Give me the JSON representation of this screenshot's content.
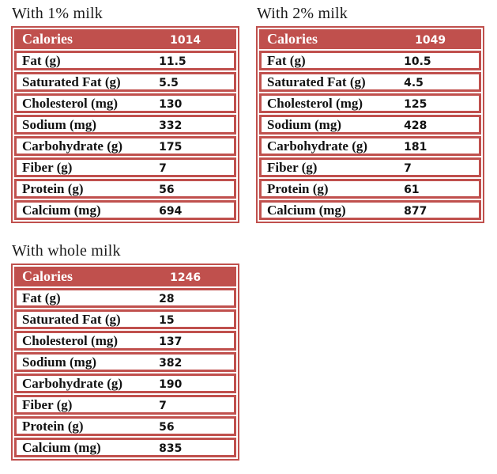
{
  "colors": {
    "accent": "#c0504d",
    "row_background": "#ffffff",
    "header_text": "#ffffff",
    "body_text": "#121212"
  },
  "tables": [
    {
      "title": "With 1% milk",
      "header": {
        "label": "Calories",
        "value": "1014"
      },
      "rows": [
        {
          "label": "Fat (g)",
          "value": "11.5"
        },
        {
          "label": "Saturated Fat (g)",
          "value": "5.5"
        },
        {
          "label": "Cholesterol (mg)",
          "value": "130"
        },
        {
          "label": "Sodium (mg)",
          "value": "332"
        },
        {
          "label": "Carbohydrate (g)",
          "value": "175"
        },
        {
          "label": "Fiber (g)",
          "value": "7"
        },
        {
          "label": "Protein (g)",
          "value": "56"
        },
        {
          "label": "Calcium (mg)",
          "value": "694"
        }
      ]
    },
    {
      "title": "With 2% milk",
      "header": {
        "label": "Calories",
        "value": "1049"
      },
      "rows": [
        {
          "label": "Fat (g)",
          "value": "10.5"
        },
        {
          "label": "Saturated Fat (g)",
          "value": "4.5"
        },
        {
          "label": "Cholesterol (mg)",
          "value": "125"
        },
        {
          "label": "Sodium (mg)",
          "value": "428"
        },
        {
          "label": "Carbohydrate (g)",
          "value": "181"
        },
        {
          "label": "Fiber (g)",
          "value": "7"
        },
        {
          "label": "Protein (g)",
          "value": "61"
        },
        {
          "label": "Calcium (mg)",
          "value": "877"
        }
      ]
    },
    {
      "title": "With whole milk",
      "header": {
        "label": "Calories",
        "value": "1246"
      },
      "rows": [
        {
          "label": "Fat (g)",
          "value": "28"
        },
        {
          "label": "Saturated Fat (g)",
          "value": "15"
        },
        {
          "label": "Cholesterol (mg)",
          "value": "137"
        },
        {
          "label": "Sodium (mg)",
          "value": "382"
        },
        {
          "label": "Carbohydrate (g)",
          "value": "190"
        },
        {
          "label": "Fiber (g)",
          "value": "7"
        },
        {
          "label": "Protein (g)",
          "value": "56"
        },
        {
          "label": "Calcium (mg)",
          "value": "835"
        }
      ]
    }
  ]
}
